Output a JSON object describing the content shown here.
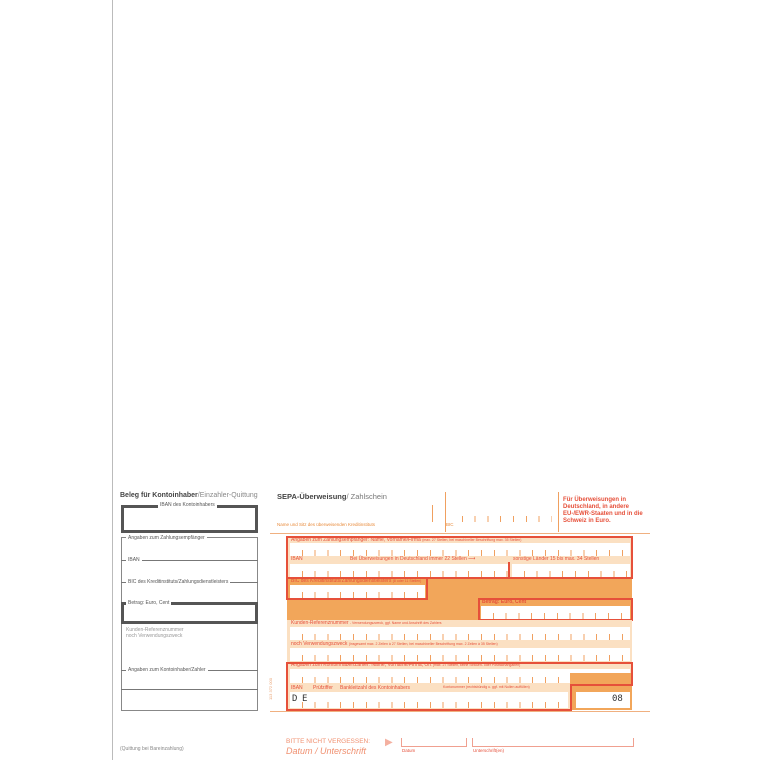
{
  "receipt": {
    "title_bold": "Beleg für Kontoinhaber",
    "title_rest": "/Einzahler-Quittung",
    "iban_owner_label": "IBAN des Kontoinhabers",
    "recipient_label": "Angaben zum Zahlungsempfänger",
    "iban_label": "IBAN",
    "bic_label": "BIC des Kreditinstituts/Zahlungsdienstleisters",
    "amount_label": "Betrag: Euro, Cent",
    "reference_label_1": "Kunden-Referenznummer",
    "reference_label_2": "noch Verwendungszweck",
    "payer_label": "Angaben zum Kontoinhaber/Zahler",
    "footer": "(Quittung bei Bareinzahlung)"
  },
  "form": {
    "title_bold": "SEPA-Überweisung",
    "title_rest": "/ Zahlschein",
    "bank_label": "Name und Sitz des überweisenden Kreditinstituts",
    "bic_label": "BIC",
    "notice": "Für Überweisungen in Deutschland, in andere EU-/EWR-Staaten und in die Schweiz in Euro.",
    "recipient_label": "Angaben zum Zahlungsempfänger: Name, Vorname/Firma",
    "recipient_hint": "(max. 27 Stellen, bei maschineller Beschriftung max. 35 Stellen)",
    "iban_label": "IBAN",
    "iban_de_hint": "Bei Überweisungen in Deutschland immer 22 Stellen",
    "iban_other_hint": "sonstige Länder 15 bis max. 34 Stellen",
    "bic_row_label": "BIC des Kreditinstituts/Zahlungsdienstleisters",
    "bic_row_hint": "(8 oder 11 Stellen)",
    "amount_label": "Betrag: Euro, Cent",
    "reference_label": "Kunden-Referenznummer",
    "reference_hint": "- Verwendungszweck, ggf. Name und Anschrift des Zahlers",
    "purpose_label": "noch Verwendungszweck",
    "purpose_hint": "(insgesamt max. 2 Zeilen à 27 Stellen, bei maschineller Beschriftung max. 2 Zeilen à 35 Stellen)",
    "payer_label": "Angaben zum Kontoinhaber/Zahler: Name, Vorname/Firma, Ort",
    "payer_hint": "(max. 27 Stellen, keine Straßen- oder Postfachangaben)",
    "payer_iban_label": "IBAN",
    "check_digits_label": "Prüfziffer",
    "bank_code_label": "Bankleitzahl des Kontoinhabers",
    "account_label": "Kontonummer (rechtsbündig u. ggf. mit Nullen auffüllen)",
    "country_d": "D",
    "country_e": "E",
    "code": "08",
    "form_number": "113 372 000",
    "reminder_1": "BITTE NICHT VERGESSEN:",
    "reminder_2": "Datum / Unterschrift",
    "date_label": "Datum",
    "signature_label": "Unterschrift(en)"
  },
  "colors": {
    "red": "#e6503a",
    "orange": "#f2a65a",
    "light_orange": "#fbe0c2"
  }
}
